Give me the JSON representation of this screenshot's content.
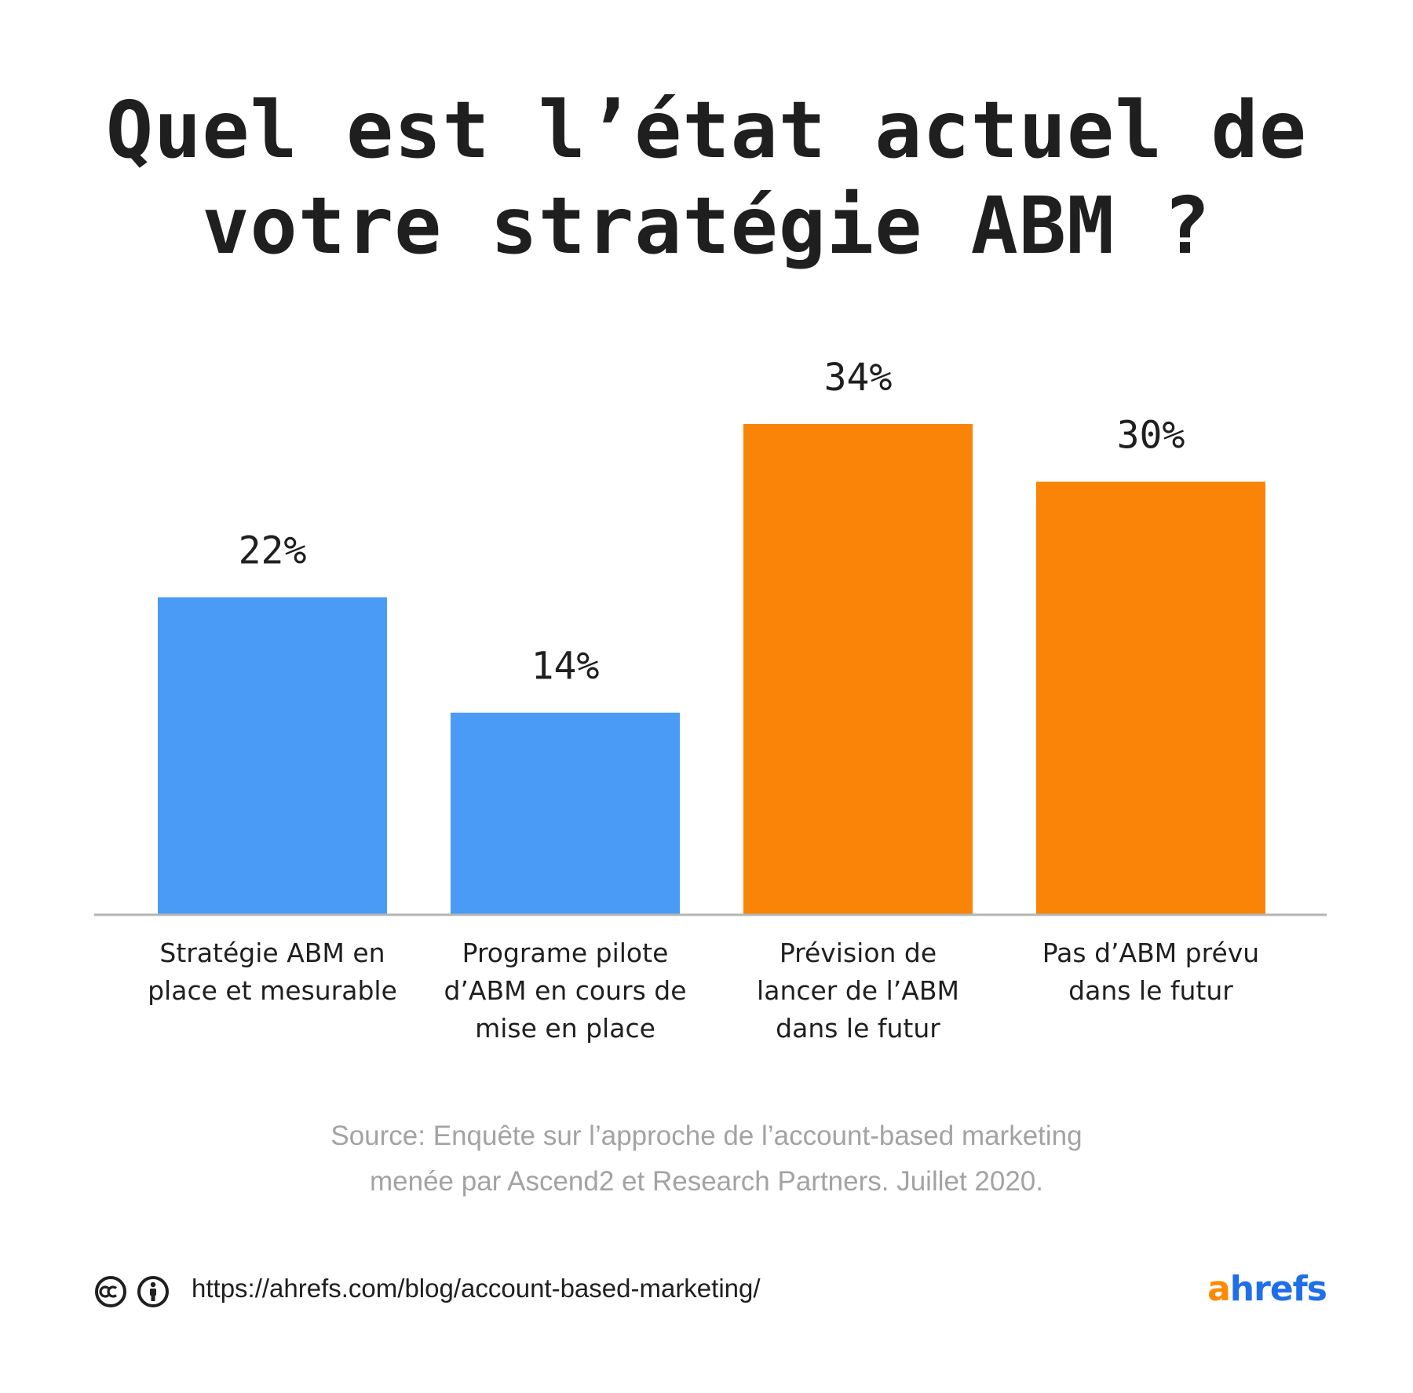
{
  "title": {
    "line1": "Quel est l’état actuel de",
    "line2": "votre stratégie ABM ?"
  },
  "chart_data": {
    "type": "bar",
    "categories": [
      [
        "Stratégie ABM en",
        "place et mesurable"
      ],
      [
        "Programe pilote",
        "d’ABM en cours de",
        "mise en place"
      ],
      [
        "Prévision de",
        "lancer de l’ABM",
        "dans le futur"
      ],
      [
        "Pas d’ABM prévu",
        "dans le futur"
      ]
    ],
    "values": [
      22,
      14,
      34,
      30
    ],
    "value_labels": [
      "22%",
      "14%",
      "34%",
      "30%"
    ],
    "colors": [
      "#4a9bf5",
      "#4a9bf5",
      "#f98407",
      "#f98407"
    ],
    "ylim": [
      0,
      34
    ],
    "grid": false,
    "axis_color": "#b4b4b4"
  },
  "source": {
    "line1": "Source: Enquête sur l’approche de l’account-based marketing",
    "line2": "menée par Ascend2 et Research Partners. Juillet 2020."
  },
  "footer": {
    "url": "https://ahrefs.com/blog/account-based-marketing/",
    "icons": [
      "creative-commons-icon",
      "attribution-icon"
    ],
    "logo_first": "a",
    "logo_rest": "hrefs",
    "logo_colors": {
      "first": "#ff8800",
      "rest": "#1f6fe8"
    }
  }
}
